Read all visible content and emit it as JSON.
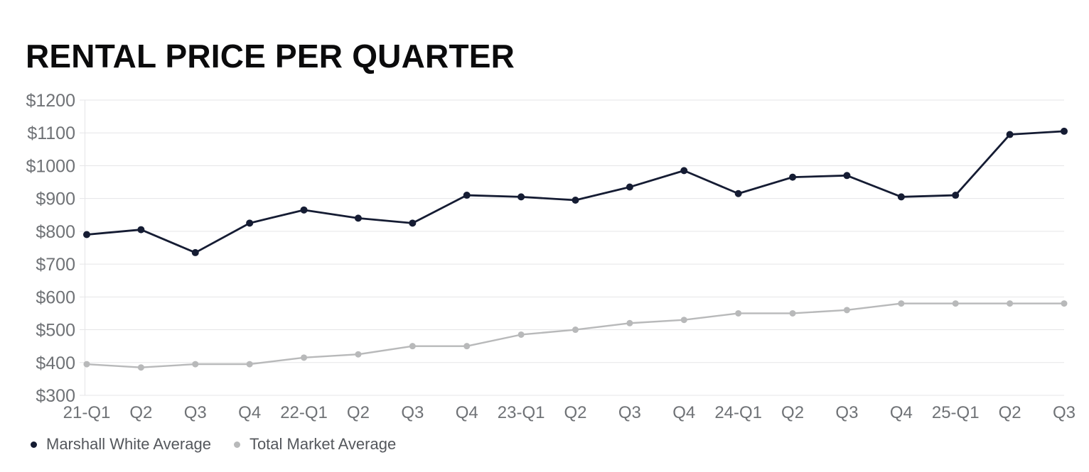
{
  "chart_data": {
    "type": "line",
    "title": "RENTAL PRICE PER QUARTER",
    "categories": [
      "21-Q1",
      "Q2",
      "Q3",
      "Q4",
      "22-Q1",
      "Q2",
      "Q3",
      "Q4",
      "23-Q1",
      "Q2",
      "Q3",
      "Q4",
      "24-Q1",
      "Q2",
      "Q3",
      "Q4",
      "25-Q1",
      "Q2",
      "Q3"
    ],
    "series": [
      {
        "name": "Marshall White Average",
        "color": "#151c33",
        "point_radius": 5,
        "line_width": 2.8,
        "values": [
          790,
          805,
          735,
          825,
          865,
          840,
          825,
          910,
          905,
          895,
          935,
          985,
          915,
          965,
          970,
          905,
          910,
          1095,
          1105
        ]
      },
      {
        "name": "Total Market Average",
        "color": "#b8b9ba",
        "point_radius": 4.5,
        "line_width": 2.4,
        "values": [
          395,
          385,
          395,
          395,
          415,
          425,
          450,
          450,
          485,
          500,
          520,
          530,
          550,
          550,
          560,
          580,
          580,
          580,
          580
        ]
      }
    ],
    "xlabel": "",
    "ylabel": "",
    "ylim": [
      300,
      1200
    ],
    "ytick_step": 100,
    "ytick_prefix": "$",
    "grid": "horizontal",
    "legend_position": "bottom-left"
  },
  "colors": {
    "background": "#ffffff",
    "title": "#0b0b0c",
    "axis_label": "#6f7276",
    "gridline": "#e5e5e7",
    "legend_text": "#54575c"
  }
}
